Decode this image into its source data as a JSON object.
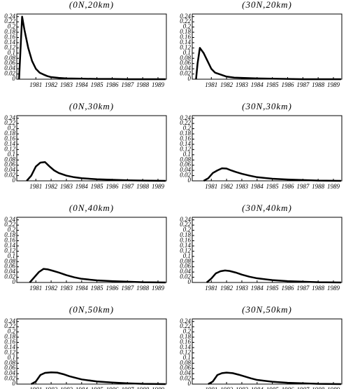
{
  "chart_data": [
    {
      "type": "line",
      "title": "(0N,20km)",
      "xlim": [
        1979.75,
        1989.55
      ],
      "ylim": [
        0,
        0.25
      ],
      "xticks": [
        1981,
        1982,
        1983,
        1984,
        1985,
        1986,
        1987,
        1988,
        1989
      ],
      "yticks": [
        0,
        0.02,
        0.04,
        0.06,
        0.08,
        0.1,
        0.12,
        0.14,
        0.16,
        0.18,
        0.2,
        0.22,
        0.24
      ],
      "x": [
        1979.9,
        1980.0,
        1980.1,
        1980.25,
        1980.5,
        1980.75,
        1981.0,
        1981.25,
        1981.5,
        1981.75,
        1982.0,
        1982.5,
        1983.0,
        1984.0,
        1985.0,
        1986.0,
        1987.0,
        1988.0,
        1989.0,
        1989.5
      ],
      "series": [
        {
          "color": "#000000",
          "values": [
            0,
            0.12,
            0.24,
            0.19,
            0.12,
            0.07,
            0.04,
            0.025,
            0.018,
            0.012,
            0.008,
            0.005,
            0.003,
            0.002,
            0.001,
            0.001,
            0,
            0,
            0,
            0
          ]
        }
      ]
    },
    {
      "type": "line",
      "title": "(30N,20km)",
      "xlim": [
        1979.75,
        1989.55
      ],
      "ylim": [
        0,
        0.25
      ],
      "xticks": [
        1981,
        1982,
        1983,
        1984,
        1985,
        1986,
        1987,
        1988,
        1989
      ],
      "yticks": [
        0,
        0.02,
        0.04,
        0.06,
        0.08,
        0.1,
        0.12,
        0.14,
        0.16,
        0.18,
        0.2,
        0.22,
        0.24
      ],
      "x": [
        1980.0,
        1980.1,
        1980.25,
        1980.5,
        1980.75,
        1981.0,
        1981.25,
        1981.5,
        1981.75,
        1982.0,
        1982.5,
        1983.0,
        1984.0,
        1985.0,
        1986.0,
        1987.0,
        1988.0,
        1989.0,
        1989.5
      ],
      "series": [
        {
          "color": "#000000",
          "values": [
            0,
            0.06,
            0.12,
            0.1,
            0.07,
            0.04,
            0.025,
            0.02,
            0.015,
            0.01,
            0.006,
            0.005,
            0.003,
            0.002,
            0.001,
            0,
            0,
            0,
            0
          ]
        }
      ]
    },
    {
      "type": "line",
      "title": "(0N,30km)",
      "xlim": [
        1979.75,
        1989.55
      ],
      "ylim": [
        0,
        0.25
      ],
      "xticks": [
        1981,
        1982,
        1983,
        1984,
        1985,
        1986,
        1987,
        1988,
        1989
      ],
      "yticks": [
        0,
        0.02,
        0.04,
        0.06,
        0.08,
        0.1,
        0.12,
        0.14,
        0.16,
        0.18,
        0.2,
        0.22,
        0.24
      ],
      "x": [
        1980.4,
        1980.7,
        1981.0,
        1981.3,
        1981.6,
        1981.9,
        1982.2,
        1982.5,
        1983.0,
        1983.5,
        1984.0,
        1985.0,
        1986.0,
        1987.0,
        1988.0,
        1989.0,
        1989.5
      ],
      "series": [
        {
          "color": "#000000",
          "values": [
            0,
            0.02,
            0.055,
            0.07,
            0.072,
            0.055,
            0.04,
            0.03,
            0.02,
            0.014,
            0.01,
            0.006,
            0.004,
            0.002,
            0.001,
            0.0005,
            0
          ]
        }
      ]
    },
    {
      "type": "line",
      "title": "(30N,30km)",
      "xlim": [
        1979.75,
        1989.55
      ],
      "ylim": [
        0,
        0.25
      ],
      "xticks": [
        1981,
        1982,
        1983,
        1984,
        1985,
        1986,
        1987,
        1988,
        1989
      ],
      "yticks": [
        0,
        0.02,
        0.04,
        0.06,
        0.08,
        0.1,
        0.12,
        0.14,
        0.16,
        0.18,
        0.2,
        0.22,
        0.24
      ],
      "x": [
        1980.5,
        1980.8,
        1981.1,
        1981.4,
        1981.7,
        1982.0,
        1982.3,
        1982.6,
        1983.0,
        1983.5,
        1984.0,
        1985.0,
        1986.0,
        1987.0,
        1988.0,
        1989.0,
        1989.5
      ],
      "series": [
        {
          "color": "#000000",
          "values": [
            0,
            0.01,
            0.03,
            0.04,
            0.048,
            0.047,
            0.04,
            0.034,
            0.027,
            0.02,
            0.014,
            0.008,
            0.005,
            0.003,
            0.001,
            0.0005,
            0
          ]
        }
      ]
    },
    {
      "type": "line",
      "title": "(0N,40km)",
      "xlim": [
        1979.75,
        1989.55
      ],
      "ylim": [
        0,
        0.25
      ],
      "xticks": [
        1981,
        1982,
        1983,
        1984,
        1985,
        1986,
        1987,
        1988,
        1989
      ],
      "yticks": [
        0,
        0.02,
        0.04,
        0.06,
        0.08,
        0.1,
        0.12,
        0.14,
        0.16,
        0.18,
        0.2,
        0.22,
        0.24
      ],
      "x": [
        1980.6,
        1980.9,
        1981.2,
        1981.5,
        1981.8,
        1982.1,
        1982.5,
        1983.0,
        1983.5,
        1984.0,
        1985.0,
        1986.0,
        1987.0,
        1988.0,
        1989.0,
        1989.5
      ],
      "series": [
        {
          "color": "#000000",
          "values": [
            0,
            0.02,
            0.04,
            0.052,
            0.05,
            0.045,
            0.038,
            0.028,
            0.02,
            0.014,
            0.008,
            0.005,
            0.003,
            0.001,
            0.0005,
            0
          ]
        }
      ]
    },
    {
      "type": "line",
      "title": "(30N,40km)",
      "xlim": [
        1979.75,
        1989.55
      ],
      "ylim": [
        0,
        0.25
      ],
      "xticks": [
        1981,
        1982,
        1983,
        1984,
        1985,
        1986,
        1987,
        1988,
        1989
      ],
      "yticks": [
        0,
        0.02,
        0.04,
        0.06,
        0.08,
        0.1,
        0.12,
        0.14,
        0.16,
        0.18,
        0.2,
        0.22,
        0.24
      ],
      "x": [
        1980.7,
        1981.0,
        1981.3,
        1981.6,
        1981.9,
        1982.2,
        1982.6,
        1983.0,
        1983.5,
        1984.0,
        1985.0,
        1986.0,
        1987.0,
        1988.0,
        1989.0,
        1989.5
      ],
      "series": [
        {
          "color": "#000000",
          "values": [
            0,
            0.015,
            0.035,
            0.043,
            0.046,
            0.044,
            0.038,
            0.03,
            0.022,
            0.016,
            0.009,
            0.005,
            0.003,
            0.001,
            0.0005,
            0
          ]
        }
      ]
    },
    {
      "type": "line",
      "title": "(0N,50km)",
      "xlim": [
        1979.75,
        1989.55
      ],
      "ylim": [
        0,
        0.25
      ],
      "xticks": [
        1981,
        1982,
        1983,
        1984,
        1985,
        1986,
        1987,
        1988,
        1989
      ],
      "yticks": [
        0,
        0.02,
        0.04,
        0.06,
        0.08,
        0.1,
        0.12,
        0.14,
        0.16,
        0.18,
        0.2,
        0.22,
        0.24
      ],
      "x": [
        1980.7,
        1981.0,
        1981.3,
        1981.6,
        1982.0,
        1982.4,
        1982.8,
        1983.2,
        1983.6,
        1984.0,
        1985.0,
        1986.0,
        1987.0,
        1988.0,
        1989.0,
        1989.5
      ],
      "series": [
        {
          "color": "#000000",
          "values": [
            0,
            0.01,
            0.035,
            0.043,
            0.045,
            0.044,
            0.038,
            0.03,
            0.024,
            0.018,
            0.01,
            0.006,
            0.003,
            0.001,
            0.0005,
            0
          ]
        }
      ]
    },
    {
      "type": "line",
      "title": "(30N,50km)",
      "xlim": [
        1979.75,
        1989.55
      ],
      "ylim": [
        0,
        0.25
      ],
      "xticks": [
        1981,
        1982,
        1983,
        1984,
        1985,
        1986,
        1987,
        1988,
        1989
      ],
      "yticks": [
        0,
        0.02,
        0.04,
        0.06,
        0.08,
        0.1,
        0.12,
        0.14,
        0.16,
        0.18,
        0.2,
        0.22,
        0.24
      ],
      "x": [
        1980.8,
        1981.1,
        1981.4,
        1981.7,
        1982.0,
        1982.4,
        1982.8,
        1983.2,
        1983.6,
        1984.0,
        1985.0,
        1986.0,
        1987.0,
        1988.0,
        1989.0,
        1989.5
      ],
      "series": [
        {
          "color": "#000000",
          "values": [
            0,
            0.01,
            0.035,
            0.042,
            0.044,
            0.042,
            0.036,
            0.029,
            0.022,
            0.016,
            0.009,
            0.005,
            0.003,
            0.001,
            0.0005,
            0
          ]
        }
      ]
    }
  ]
}
